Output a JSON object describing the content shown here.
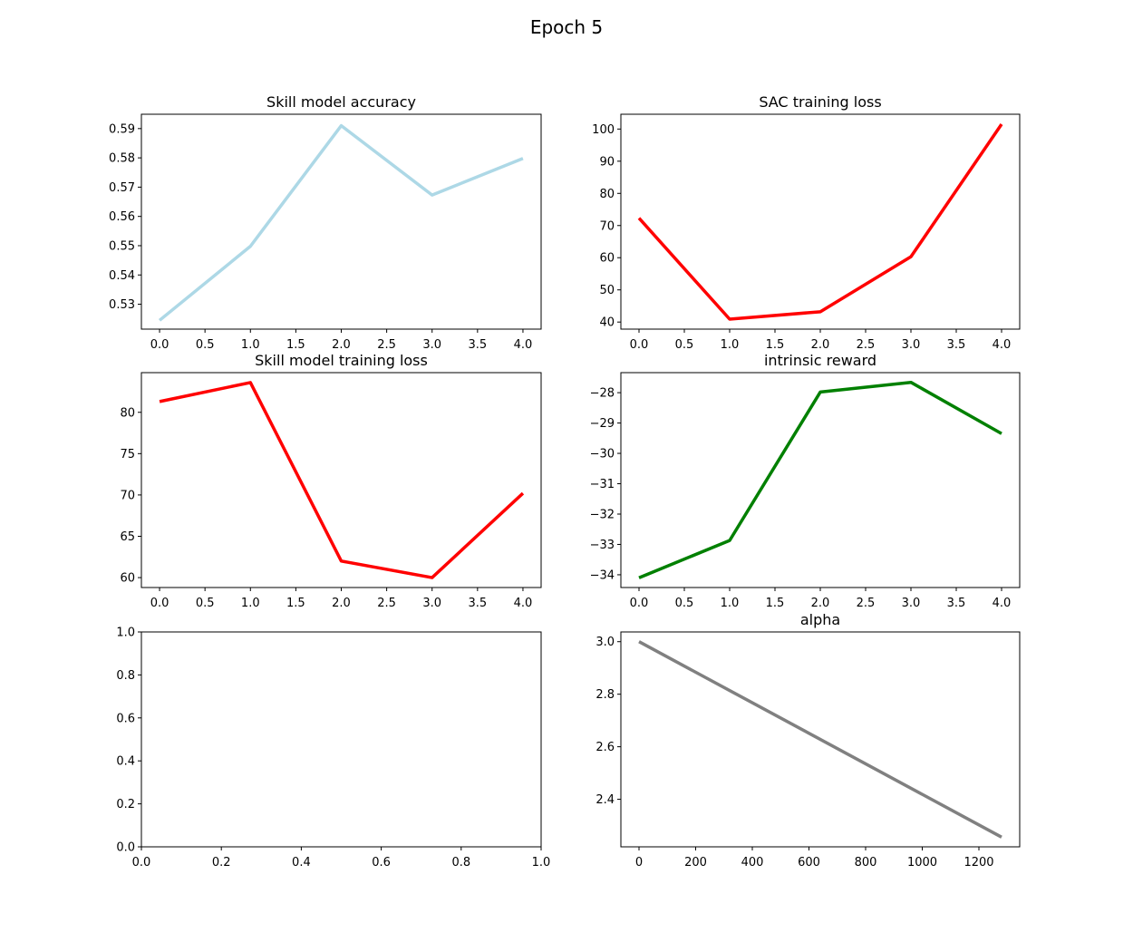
{
  "figure": {
    "suptitle": "Epoch 5"
  },
  "chart_data": [
    {
      "type": "line",
      "title": "Skill model accuracy",
      "x": [
        0,
        1,
        2,
        3,
        4
      ],
      "series": [
        {
          "values": [
            0.5245,
            0.5498,
            0.591,
            0.5673,
            0.5798
          ],
          "color": "#add8e6"
        }
      ],
      "xlim": [
        -0.2,
        4.2
      ],
      "ylim": [
        0.5215,
        0.5949
      ],
      "xticks": [
        0,
        0.5,
        1,
        1.5,
        2,
        2.5,
        3,
        3.5,
        4
      ],
      "xtick_labels": [
        "0.0",
        "0.5",
        "1.0",
        "1.5",
        "2.0",
        "2.5",
        "3.0",
        "3.5",
        "4.0"
      ],
      "yticks": [
        0.53,
        0.54,
        0.55,
        0.56,
        0.57,
        0.58,
        0.59
      ],
      "ytick_labels": [
        "0.53",
        "0.54",
        "0.55",
        "0.56",
        "0.57",
        "0.58",
        "0.59"
      ]
    },
    {
      "type": "line",
      "title": "SAC training loss",
      "x": [
        0,
        1,
        2,
        3,
        4
      ],
      "series": [
        {
          "values": [
            72.3,
            40.9,
            43.2,
            60.3,
            101.5
          ],
          "color": "#ff0000"
        }
      ],
      "xlim": [
        -0.2,
        4.2
      ],
      "ylim": [
        37.8,
        104.6
      ],
      "xticks": [
        0,
        0.5,
        1,
        1.5,
        2,
        2.5,
        3,
        3.5,
        4
      ],
      "xtick_labels": [
        "0.0",
        "0.5",
        "1.0",
        "1.5",
        "2.0",
        "2.5",
        "3.0",
        "3.5",
        "4.0"
      ],
      "yticks": [
        40,
        50,
        60,
        70,
        80,
        90,
        100
      ],
      "ytick_labels": [
        "40",
        "50",
        "60",
        "70",
        "80",
        "90",
        "100"
      ]
    },
    {
      "type": "line",
      "title": "Skill model training loss",
      "x": [
        0,
        1,
        2,
        3,
        4
      ],
      "series": [
        {
          "values": [
            81.3,
            83.6,
            62.0,
            60.0,
            70.2
          ],
          "color": "#ff0000"
        }
      ],
      "xlim": [
        -0.2,
        4.2
      ],
      "ylim": [
        58.8,
        84.8
      ],
      "xticks": [
        0,
        0.5,
        1,
        1.5,
        2,
        2.5,
        3,
        3.5,
        4
      ],
      "xtick_labels": [
        "0.0",
        "0.5",
        "1.0",
        "1.5",
        "2.0",
        "2.5",
        "3.0",
        "3.5",
        "4.0"
      ],
      "yticks": [
        60,
        65,
        70,
        75,
        80
      ],
      "ytick_labels": [
        "60",
        "65",
        "70",
        "75",
        "80"
      ]
    },
    {
      "type": "line",
      "title": "intrinsic reward",
      "x": [
        0,
        1,
        2,
        3,
        4
      ],
      "series": [
        {
          "values": [
            -34.1,
            -32.87,
            -27.98,
            -27.66,
            -29.35
          ],
          "color": "#008000"
        }
      ],
      "xlim": [
        -0.2,
        4.2
      ],
      "ylim": [
        -34.42,
        -27.34
      ],
      "xticks": [
        0,
        0.5,
        1,
        1.5,
        2,
        2.5,
        3,
        3.5,
        4
      ],
      "xtick_labels": [
        "0.0",
        "0.5",
        "1.0",
        "1.5",
        "2.0",
        "2.5",
        "3.0",
        "3.5",
        "4.0"
      ],
      "yticks": [
        -34,
        -33,
        -32,
        -31,
        -30,
        -29,
        -28
      ],
      "ytick_labels": [
        "−34",
        "−33",
        "−32",
        "−31",
        "−30",
        "−29",
        "−28"
      ]
    },
    {
      "type": "line",
      "title": "",
      "x": [],
      "series": [],
      "xlim": [
        0,
        1
      ],
      "ylim": [
        0,
        1
      ],
      "xticks": [
        0,
        0.2,
        0.4,
        0.6,
        0.8,
        1.0
      ],
      "xtick_labels": [
        "0.0",
        "0.2",
        "0.4",
        "0.6",
        "0.8",
        "1.0"
      ],
      "yticks": [
        0,
        0.2,
        0.4,
        0.6,
        0.8,
        1.0
      ],
      "ytick_labels": [
        "0.0",
        "0.2",
        "0.4",
        "0.6",
        "0.8",
        "1.0"
      ]
    },
    {
      "type": "line",
      "title": "alpha",
      "x": [
        0,
        1280
      ],
      "series": [
        {
          "values": [
            3.0,
            2.256
          ],
          "color": "#808080"
        }
      ],
      "xlim": [
        -64,
        1344
      ],
      "ylim": [
        2.219,
        3.037
      ],
      "xticks": [
        0,
        200,
        400,
        600,
        800,
        1000,
        1200
      ],
      "xtick_labels": [
        "0",
        "200",
        "400",
        "600",
        "800",
        "1000",
        "1200"
      ],
      "yticks": [
        2.4,
        2.6,
        2.8,
        3.0
      ],
      "ytick_labels": [
        "2.4",
        "2.6",
        "2.8",
        "3.0"
      ]
    }
  ]
}
